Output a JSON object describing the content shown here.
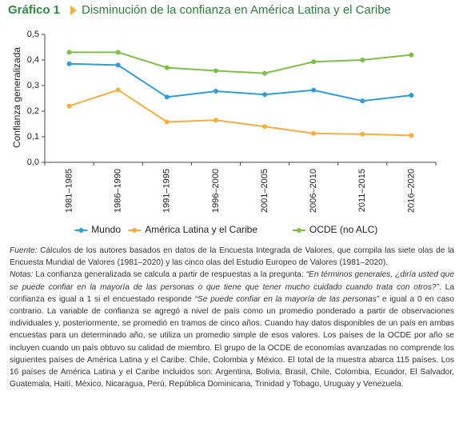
{
  "header": {
    "label": "Gráfico 1",
    "title": "Disminución de la confianza en América Latina y el Caribe"
  },
  "chart_data": {
    "type": "line",
    "y_label": "Confianza generalizada",
    "categories": [
      "1981–1985",
      "1986–1990",
      "1991–1995",
      "1996–2000",
      "2001–2005",
      "2006–2010",
      "2011–2015",
      "2016–2020"
    ],
    "series": [
      {
        "name": "Mundo",
        "color": "#2e9fd6",
        "values": [
          0.385,
          0.38,
          0.255,
          0.278,
          0.265,
          0.282,
          0.24,
          0.262
        ]
      },
      {
        "name": "América Latina y el Caribe",
        "color": "#f5ad3e",
        "values": [
          0.22,
          0.283,
          0.158,
          0.165,
          0.14,
          0.113,
          0.11,
          0.105
        ]
      },
      {
        "name": "OCDE (no ALC)",
        "color": "#7cc144",
        "values": [
          0.43,
          0.43,
          0.37,
          0.358,
          0.348,
          0.393,
          0.4,
          0.42
        ]
      }
    ],
    "ylim": [
      0,
      0.5
    ],
    "yticks": [
      {
        "value": 0,
        "label": "0,0"
      },
      {
        "value": 0.1,
        "label": "0,1"
      },
      {
        "value": 0.2,
        "label": "0,2"
      },
      {
        "value": 0.3,
        "label": "0,3"
      },
      {
        "value": 0.4,
        "label": "0,4"
      },
      {
        "value": 0.5,
        "label": "0,5"
      }
    ],
    "legend": "bottom"
  },
  "notes": [
    [
      {
        "text": "Fuente:",
        "italic": true
      },
      {
        "text": " Cálculos de los autores basados en datos de la Encuesta Integrada de Valores, que compila las siete olas de la Encuesta Mundial de Valores (1981–2020) y las cinco olas del Estudio Europeo de Valores (1981–2020).",
        "italic": false
      }
    ],
    [
      {
        "text": "Notas:",
        "italic": true
      },
      {
        "text": " La confianza generalizada se calcula a partir de respuestas a la pregunta: ",
        "italic": false
      },
      {
        "text": "“En términos generales, ¿diría usted que se puede confiar en la mayoría de las personas o que tiene que tener mucho cuidado cuando trata con otros?”",
        "italic": true
      },
      {
        "text": ". La confianza es igual a 1 si el encuestado responde ",
        "italic": false
      },
      {
        "text": "“Se puede confiar en la mayoría de las personas”",
        "italic": true
      },
      {
        "text": " e igual a 0 en caso contrario. La variable de confianza se agregó a nivel de país como un promedio ponderado a partir de observaciones individuales y, posteriormente, se promedió en tramos de cinco años. Cuando hay datos disponibles de un país en ambas encuestas para un determinado año, se utiliza un promedio simple de esos valores. Los países de la OCDE por año se incluyen cuando un país obtuvo su calidad de miembro. El grupo de la OCDE de economías avanzadas no comprende los siguientes países de América Latina y el Caribe: Chile, Colombia y México. El total de la muestra abarca 115 países. Los 16 países de América Latina y el Caribe incluidos son: Argentina, Bolivia, Brasil, Chile, Colombia, Ecuador, El Salvador, Guatemala, Haití, México, Nicaragua, Perú, República Dominicana, Trinidad y Tobago, Uruguay y Venezuela.",
        "italic": false
      }
    ]
  ]
}
